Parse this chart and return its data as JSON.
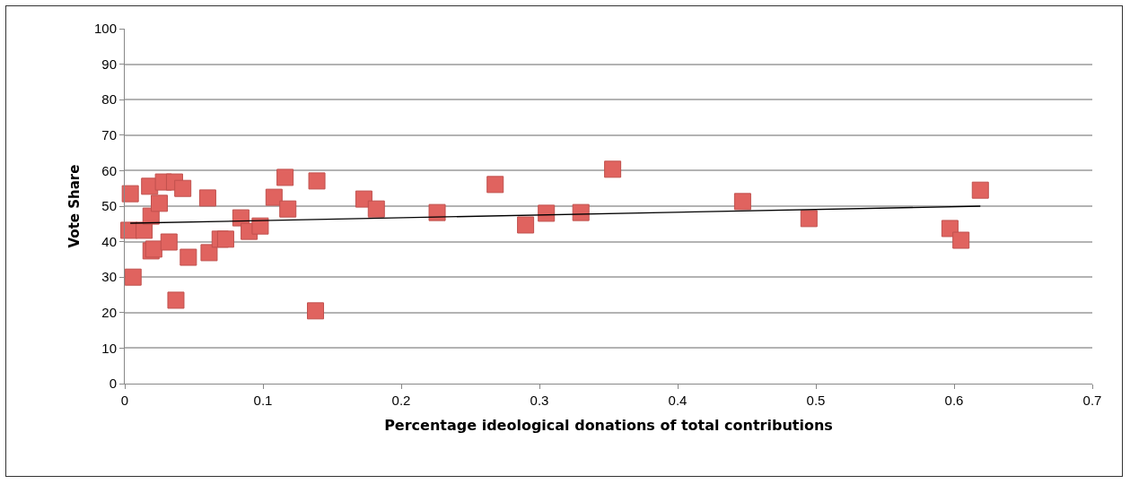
{
  "chart_data": {
    "type": "scatter",
    "xlabel": "Percentage ideological donations of total contributions",
    "ylabel": "Vote Share",
    "xlim": [
      0,
      0.7
    ],
    "xticks": [
      0,
      0.1,
      0.2,
      0.3,
      0.4,
      0.5,
      0.6,
      0.7
    ],
    "ylim": [
      0,
      100
    ],
    "yticks": [
      0,
      10,
      20,
      30,
      40,
      50,
      60,
      70,
      80,
      90,
      100
    ],
    "grid": "y",
    "marker": "square",
    "series": [
      {
        "color": "#e0635f",
        "x": [
          0.003,
          0.004,
          0.006,
          0.014,
          0.018,
          0.019,
          0.019,
          0.021,
          0.025,
          0.028,
          0.032,
          0.036,
          0.037,
          0.042,
          0.046,
          0.06,
          0.061,
          0.069,
          0.073,
          0.084,
          0.09,
          0.098,
          0.108,
          0.116,
          0.118,
          0.138,
          0.139,
          0.173,
          0.182,
          0.226,
          0.268,
          0.29,
          0.305,
          0.33,
          0.353,
          0.447,
          0.495,
          0.597,
          0.605,
          0.619
        ],
        "values": [
          43.2,
          53.5,
          30,
          43.2,
          55.6,
          47.2,
          37.4,
          37.9,
          50.8,
          56.8,
          39.9,
          56.8,
          23.5,
          55,
          35.6,
          52.3,
          36.9,
          40.7,
          40.7,
          46.7,
          42.9,
          44.4,
          52.5,
          58.1,
          49.2,
          20.5,
          57.1,
          52,
          49.2,
          48.2,
          56.1,
          44.7,
          48,
          48.2,
          60.4,
          51.3,
          46.5,
          43.7,
          40.4,
          54.5
        ]
      },
      {
        "type": "line",
        "color": "#000000",
        "marker": "none",
        "x": [
          0.004,
          0.619
        ],
        "values": [
          45.2,
          50
        ]
      }
    ]
  }
}
